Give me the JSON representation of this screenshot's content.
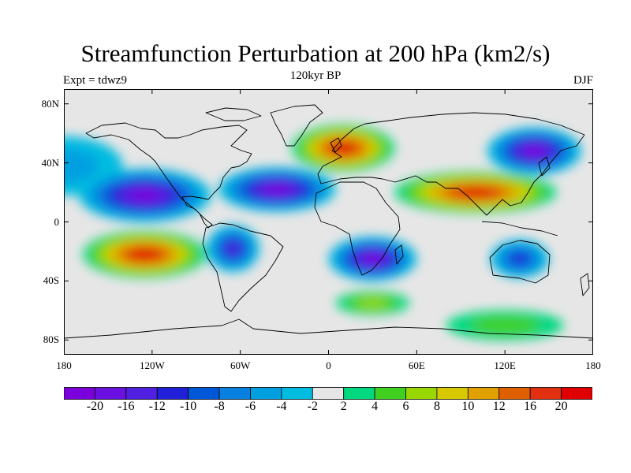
{
  "title": "Streamfunction Perturbation at 200 hPa (km2/s)",
  "subtitle": "120kyr BP",
  "left_label": "Expt = tdwz9",
  "right_label": "DJF",
  "colors": {
    "background_zero": "#e6e6e6",
    "coast": "#000000"
  },
  "chart_data": {
    "type": "heatmap",
    "title": "Streamfunction Perturbation at 200 hPa (km2/s)",
    "subtitle": "120kyr BP",
    "projection": "cylindrical-equidistant",
    "xlim": [
      -180,
      180
    ],
    "ylim": [
      -90,
      90
    ],
    "x_ticks": [
      "180",
      "120W",
      "60W",
      "0",
      "60E",
      "120E",
      "180"
    ],
    "y_ticks": [
      "80N",
      "40N",
      "0",
      "40S",
      "80S"
    ],
    "colorbar": {
      "tick_labels": [
        "-20",
        "-16",
        "-12",
        "-10",
        "-8",
        "-6",
        "-4",
        "-2",
        "2",
        "4",
        "6",
        "8",
        "10",
        "12",
        "16",
        "20"
      ],
      "colors": [
        "#7a00dc",
        "#6a10e0",
        "#5020e0",
        "#2020d8",
        "#0058d8",
        "#0880e0",
        "#00a0e0",
        "#00bce0",
        "#e6e6e6",
        "#00d880",
        "#40d020",
        "#98d800",
        "#d8c800",
        "#e0a000",
        "#e06000",
        "#e03010",
        "#e00000"
      ]
    },
    "features": [
      {
        "name": "NE Pacific/N America high",
        "lon": -180,
        "lat": 38,
        "value": -4
      },
      {
        "name": "Eastern Pacific subtropical low",
        "lon": -125,
        "lat": 18,
        "value": -20
      },
      {
        "name": "North Atlantic low",
        "lon": -35,
        "lat": 22,
        "value": -20
      },
      {
        "name": "Northern Europe high",
        "lon": 10,
        "lat": 50,
        "value": 20
      },
      {
        "name": "South Asia high",
        "lon": 100,
        "lat": 20,
        "value": 20
      },
      {
        "name": "NW Pacific low",
        "lon": 140,
        "lat": 48,
        "value": -20
      },
      {
        "name": "South Pacific high",
        "lon": -125,
        "lat": -22,
        "value": 20
      },
      {
        "name": "South America low",
        "lon": -65,
        "lat": -18,
        "value": -12
      },
      {
        "name": "Southern Africa low",
        "lon": 30,
        "lat": -25,
        "value": -20
      },
      {
        "name": "Australia low",
        "lon": 130,
        "lat": -25,
        "value": -10
      },
      {
        "name": "Southern Ocean positive",
        "lon": 30,
        "lat": -55,
        "value": 6
      },
      {
        "name": "Antarctic positive",
        "lon": 120,
        "lat": -70,
        "value": 4
      }
    ]
  }
}
